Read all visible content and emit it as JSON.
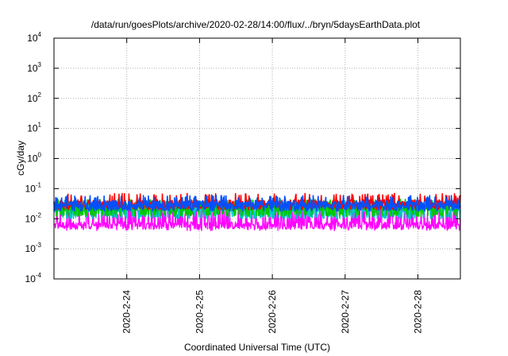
{
  "chart_data": {
    "type": "line",
    "title": "/data/run/goesPlots/archive/2020-02-28/14:00/flux/../bryn/5daysEarthData.plot",
    "xlabel": "Coordinated Universal Time (UTC)",
    "ylabel": "cGy/day",
    "yscale": "log",
    "ylim": [
      0.0001,
      10000
    ],
    "xlim": [
      "2020-02-23T00:00",
      "2020-02-28T14:00"
    ],
    "grid": true,
    "legend": "none",
    "yticks": [
      {
        "base": "10",
        "exp": "-4",
        "value": 0.0001
      },
      {
        "base": "10",
        "exp": "-3",
        "value": 0.001
      },
      {
        "base": "10",
        "exp": "-2",
        "value": 0.01
      },
      {
        "base": "10",
        "exp": "-1",
        "value": 0.1
      },
      {
        "base": "10",
        "exp": "0",
        "value": 1
      },
      {
        "base": "10",
        "exp": "1",
        "value": 10
      },
      {
        "base": "10",
        "exp": "2",
        "value": 100
      },
      {
        "base": "10",
        "exp": "3",
        "value": 1000
      },
      {
        "base": "10",
        "exp": "4",
        "value": 10000
      }
    ],
    "xticks": [
      {
        "label": "2020-2-24",
        "value": "2020-02-24T00:00"
      },
      {
        "label": "2020-2-25",
        "value": "2020-02-25T00:00"
      },
      {
        "label": "2020-2-26",
        "value": "2020-02-26T00:00"
      },
      {
        "label": "2020-2-27",
        "value": "2020-02-27T00:00"
      },
      {
        "label": "2020-2-28",
        "value": "2020-02-28T00:00"
      }
    ],
    "series": [
      {
        "color": "#ff0000",
        "typical": 0.032,
        "low": 0.02,
        "high": 0.07
      },
      {
        "color": "#00c800",
        "typical": 0.025,
        "low": 0.012,
        "high": 0.045
      },
      {
        "color": "#00c8c8",
        "typical": 0.022,
        "low": 0.01,
        "high": 0.04
      },
      {
        "color": "#0050ff",
        "typical": 0.03,
        "low": 0.018,
        "high": 0.06
      },
      {
        "color": "#ff00ff",
        "typical": 0.006,
        "low": 0.004,
        "high": 0.03
      }
    ]
  }
}
